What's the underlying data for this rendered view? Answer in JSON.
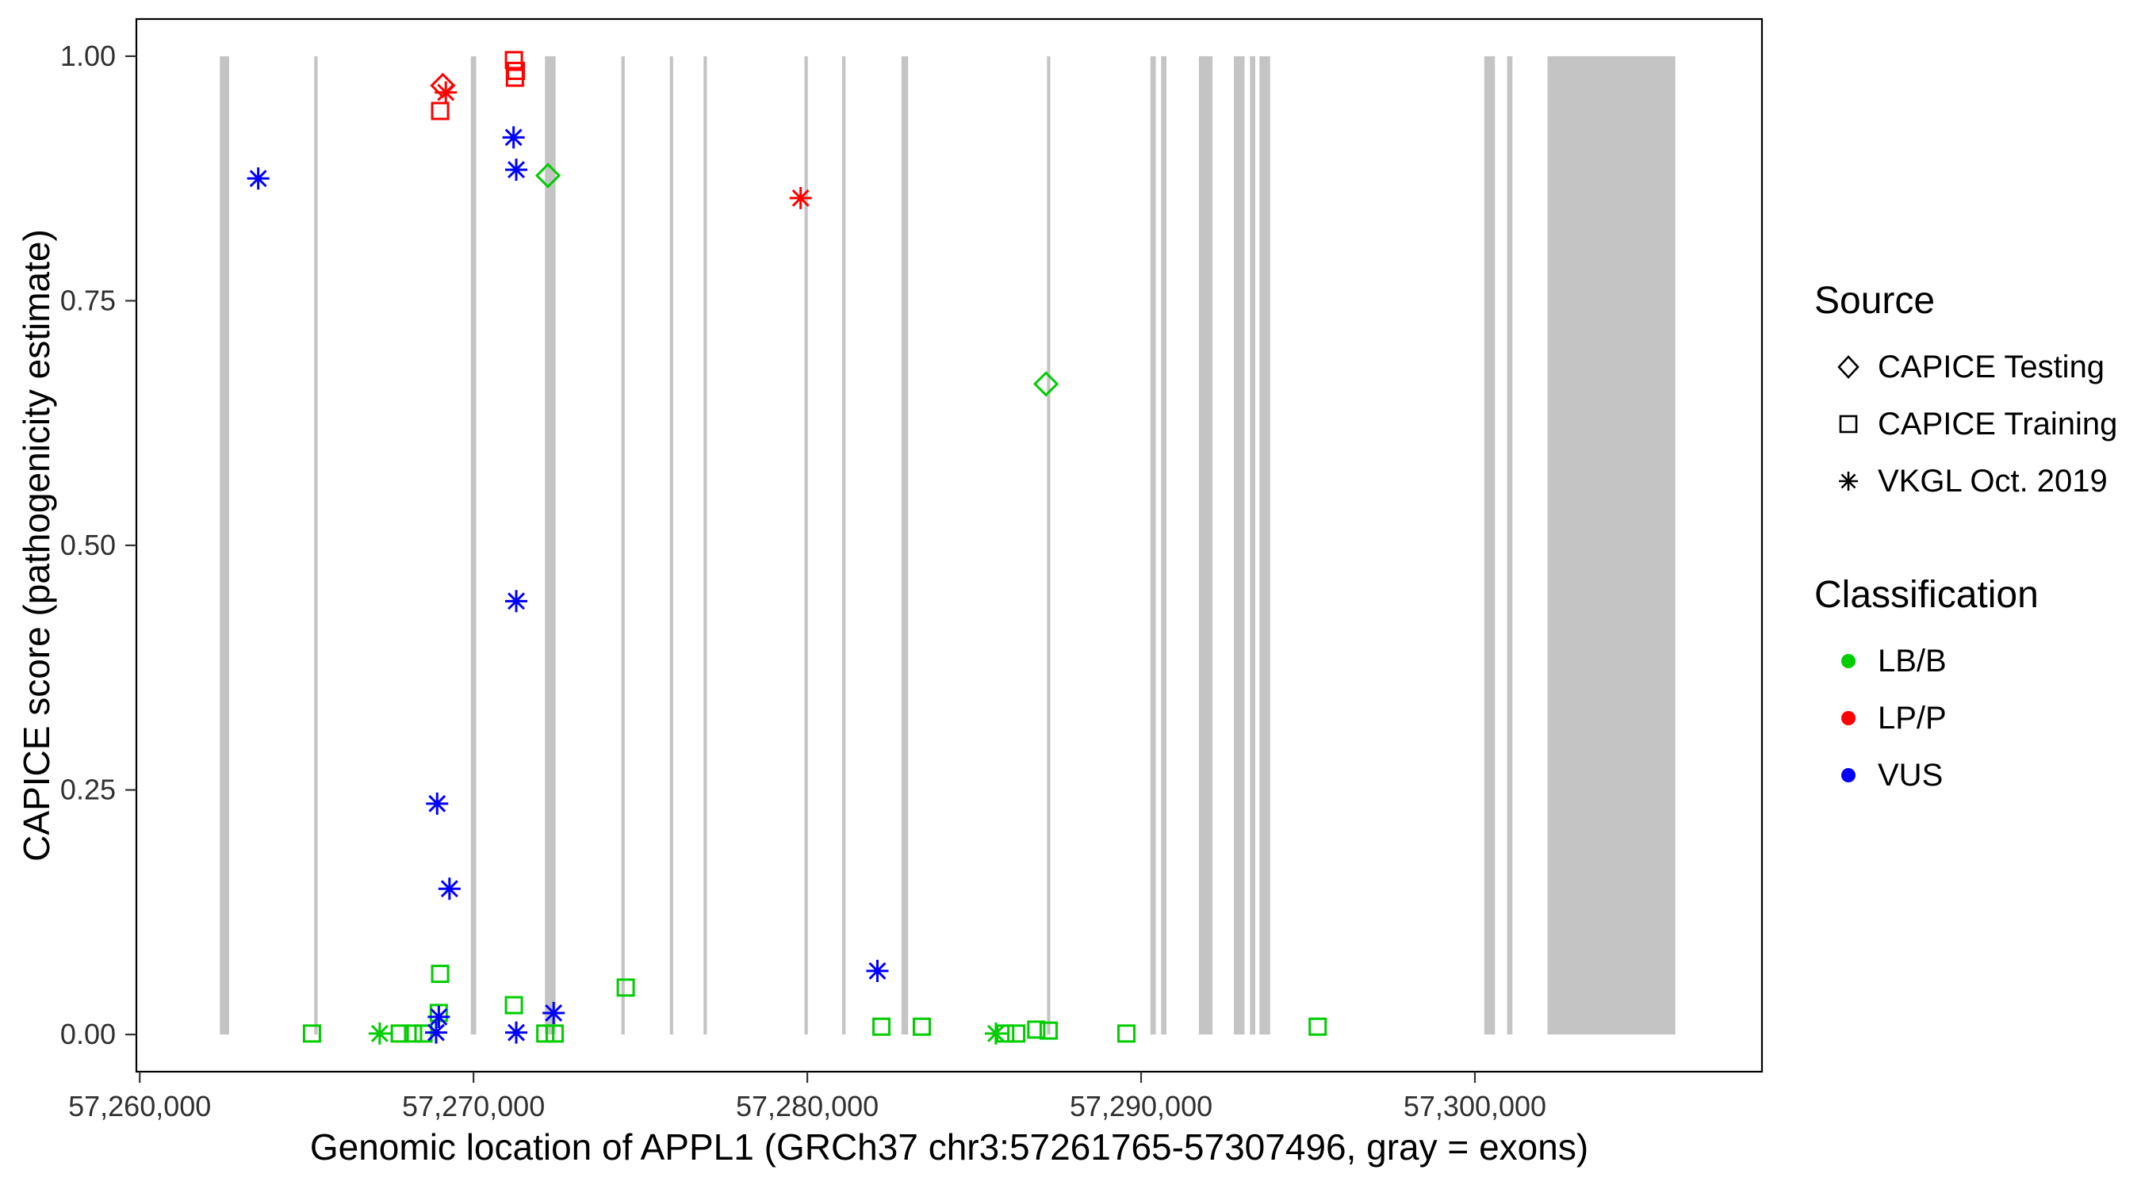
{
  "chart_data": {
    "type": "scatter",
    "title": "",
    "xlabel": "Genomic location of APPL1 (GRCh37 chr3:57261765-57307496, gray = exons)",
    "ylabel": "CAPICE score (pathogenicity estimate)",
    "xlim": [
      57259900,
      57308600
    ],
    "ylim": [
      -0.038,
      1.038
    ],
    "x_ticks": [
      57260000,
      57270000,
      57280000,
      57290000,
      57300000
    ],
    "x_tick_labels": [
      "57,260,000",
      "57,270,000",
      "57,280,000",
      "57,290,000",
      "57,300,000"
    ],
    "y_ticks": [
      0,
      0.25,
      0.5,
      0.75,
      1.0
    ],
    "y_tick_labels": [
      "0.00",
      "0.25",
      "0.50",
      "0.75",
      "1.00"
    ],
    "grid": false,
    "legend_position": "right",
    "exon_color": "#c4c4c4",
    "classification_colors": {
      "LB/B": "#00cd00",
      "LP/P": "#ff0000",
      "VUS": "#0000ff"
    },
    "source_shapes": {
      "CAPICE Testing": "diamond",
      "CAPICE Training": "square",
      "VKGL Oct. 2019": "asterisk"
    },
    "legend": {
      "source": {
        "title": "Source",
        "items": [
          {
            "label": "CAPICE Testing",
            "shape": "diamond"
          },
          {
            "label": "CAPICE Training",
            "shape": "square"
          },
          {
            "label": "VKGL Oct. 2019",
            "shape": "asterisk"
          }
        ]
      },
      "classification": {
        "title": "Classification",
        "items": [
          {
            "label": "LB/B",
            "color": "#00cd00"
          },
          {
            "label": "LP/P",
            "color": "#ff0000"
          },
          {
            "label": "VUS",
            "color": "#0000ff"
          }
        ]
      }
    },
    "exons": [
      [
        57262400,
        57262680
      ],
      [
        57265230,
        57265330
      ],
      [
        57269920,
        57270080
      ],
      [
        57272140,
        57272460
      ],
      [
        57274430,
        57274530
      ],
      [
        57275880,
        57275980
      ],
      [
        57276890,
        57276990
      ],
      [
        57279915,
        57280015
      ],
      [
        57281045,
        57281145
      ],
      [
        57282820,
        57283020
      ],
      [
        57287180,
        57287280
      ],
      [
        57290280,
        57290440
      ],
      [
        57290600,
        57290760
      ],
      [
        57291730,
        57292140
      ],
      [
        57292780,
        57293100
      ],
      [
        57293260,
        57293420
      ],
      [
        57293545,
        57293865
      ],
      [
        57300280,
        57300600
      ],
      [
        57300965,
        57301125
      ],
      [
        57302175,
        57306005
      ]
    ],
    "points": [
      {
        "x": 57265160,
        "y": 0.001,
        "source": "CAPICE Training",
        "classification": "LB/B"
      },
      {
        "x": 57267190,
        "y": 0.001,
        "source": "VKGL Oct. 2019",
        "classification": "LB/B"
      },
      {
        "x": 57267790,
        "y": 0.001,
        "source": "CAPICE Training",
        "classification": "LB/B"
      },
      {
        "x": 57268190,
        "y": 0.001,
        "source": "CAPICE Training",
        "classification": "LB/B"
      },
      {
        "x": 57268500,
        "y": 0.001,
        "source": "CAPICE Training",
        "classification": "LB/B"
      },
      {
        "x": 57269000,
        "y": 0.062,
        "source": "CAPICE Training",
        "classification": "LB/B"
      },
      {
        "x": 57268960,
        "y": 0.022,
        "source": "CAPICE Training",
        "classification": "LB/B"
      },
      {
        "x": 57271210,
        "y": 0.03,
        "source": "CAPICE Training",
        "classification": "LB/B"
      },
      {
        "x": 57272150,
        "y": 0.001,
        "source": "CAPICE Training",
        "classification": "LB/B"
      },
      {
        "x": 57272430,
        "y": 0.001,
        "source": "CAPICE Training",
        "classification": "LB/B"
      },
      {
        "x": 57274560,
        "y": 0.048,
        "source": "CAPICE Training",
        "classification": "LB/B"
      },
      {
        "x": 57282220,
        "y": 0.008,
        "source": "CAPICE Training",
        "classification": "LB/B"
      },
      {
        "x": 57283430,
        "y": 0.008,
        "source": "CAPICE Training",
        "classification": "LB/B"
      },
      {
        "x": 57285650,
        "y": 0.001,
        "source": "VKGL Oct. 2019",
        "classification": "LB/B"
      },
      {
        "x": 57285930,
        "y": 0.001,
        "source": "CAPICE Training",
        "classification": "LB/B"
      },
      {
        "x": 57286260,
        "y": 0.001,
        "source": "CAPICE Training",
        "classification": "LB/B"
      },
      {
        "x": 57286860,
        "y": 0.005,
        "source": "CAPICE Training",
        "classification": "LB/B"
      },
      {
        "x": 57287230,
        "y": 0.004,
        "source": "CAPICE Training",
        "classification": "LB/B"
      },
      {
        "x": 57289560,
        "y": 0.001,
        "source": "CAPICE Training",
        "classification": "LB/B"
      },
      {
        "x": 57295290,
        "y": 0.008,
        "source": "CAPICE Training",
        "classification": "LB/B"
      },
      {
        "x": 57272230,
        "y": 0.878,
        "source": "CAPICE Testing",
        "classification": "LB/B"
      },
      {
        "x": 57287150,
        "y": 0.665,
        "source": "CAPICE Testing",
        "classification": "LB/B"
      },
      {
        "x": 57263550,
        "y": 0.875,
        "source": "VKGL Oct. 2019",
        "classification": "VUS"
      },
      {
        "x": 57268910,
        "y": 0.236,
        "source": "VKGL Oct. 2019",
        "classification": "VUS"
      },
      {
        "x": 57269280,
        "y": 0.149,
        "source": "VKGL Oct. 2019",
        "classification": "VUS"
      },
      {
        "x": 57271200,
        "y": 0.917,
        "source": "VKGL Oct. 2019",
        "classification": "VUS"
      },
      {
        "x": 57271280,
        "y": 0.884,
        "source": "VKGL Oct. 2019",
        "classification": "VUS"
      },
      {
        "x": 57271280,
        "y": 0.443,
        "source": "VKGL Oct. 2019",
        "classification": "VUS"
      },
      {
        "x": 57282100,
        "y": 0.065,
        "source": "VKGL Oct. 2019",
        "classification": "VUS"
      },
      {
        "x": 57272400,
        "y": 0.022,
        "source": "VKGL Oct. 2019",
        "classification": "VUS"
      },
      {
        "x": 57268960,
        "y": 0.018,
        "source": "VKGL Oct. 2019",
        "classification": "VUS"
      },
      {
        "x": 57268880,
        "y": 0.002,
        "source": "VKGL Oct. 2019",
        "classification": "VUS"
      },
      {
        "x": 57271280,
        "y": 0.002,
        "source": "VKGL Oct. 2019",
        "classification": "VUS"
      },
      {
        "x": 57269000,
        "y": 0.944,
        "source": "CAPICE Training",
        "classification": "LP/P"
      },
      {
        "x": 57271210,
        "y": 0.996,
        "source": "CAPICE Training",
        "classification": "LP/P"
      },
      {
        "x": 57271270,
        "y": 0.985,
        "source": "CAPICE Training",
        "classification": "LP/P"
      },
      {
        "x": 57271240,
        "y": 0.978,
        "source": "CAPICE Training",
        "classification": "LP/P"
      },
      {
        "x": 57269080,
        "y": 0.97,
        "source": "CAPICE Testing",
        "classification": "LP/P"
      },
      {
        "x": 57269170,
        "y": 0.963,
        "source": "VKGL Oct. 2019",
        "classification": "LP/P"
      },
      {
        "x": 57279800,
        "y": 0.855,
        "source": "VKGL Oct. 2019",
        "classification": "LP/P"
      }
    ]
  }
}
